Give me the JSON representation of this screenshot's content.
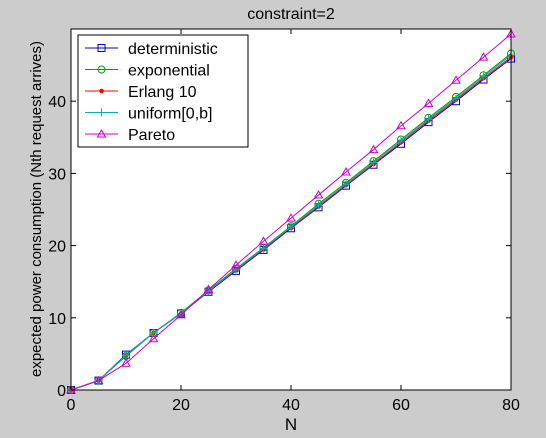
{
  "chart_data": {
    "type": "line",
    "title": "constraint=2",
    "xlabel": "N",
    "ylabel": "expected power consumption (Nth request arrives)",
    "xlim": [
      0,
      80
    ],
    "ylim": [
      0,
      50
    ],
    "xticks": [
      0,
      20,
      40,
      60,
      80
    ],
    "yticks": [
      0,
      10,
      20,
      30,
      40
    ],
    "grid": false,
    "legend_position": "top-left",
    "x": [
      0,
      5,
      10,
      15,
      20,
      25,
      30,
      35,
      40,
      45,
      50,
      55,
      60,
      65,
      70,
      75,
      80
    ],
    "series": [
      {
        "name": "deterministic",
        "color": "#0000cc",
        "marker": "square",
        "values": [
          0.0,
          1.3,
          4.9,
          7.9,
          10.6,
          13.6,
          16.5,
          19.4,
          22.4,
          25.3,
          28.3,
          31.2,
          34.1,
          37.1,
          40.0,
          43.0,
          45.9
        ]
      },
      {
        "name": "exponential",
        "color": "#00a000",
        "marker": "circle",
        "values": [
          0.0,
          1.3,
          4.7,
          7.9,
          10.7,
          13.8,
          16.8,
          19.7,
          22.7,
          25.8,
          28.7,
          31.7,
          34.7,
          37.7,
          40.6,
          43.6,
          46.6
        ]
      },
      {
        "name": "Erlang 10",
        "color": "#ff0000",
        "marker": "dot",
        "values": [
          0.0,
          1.3,
          4.8,
          7.9,
          10.6,
          13.7,
          16.6,
          19.5,
          22.5,
          25.4,
          28.4,
          31.3,
          34.3,
          37.3,
          40.2,
          43.2,
          46.1
        ]
      },
      {
        "name": "uniform[0,b]",
        "color": "#00b0b0",
        "marker": "plus",
        "values": [
          0.0,
          1.3,
          4.8,
          7.9,
          10.6,
          13.7,
          16.7,
          19.6,
          22.6,
          25.6,
          28.5,
          31.5,
          34.5,
          37.5,
          40.4,
          43.4,
          46.4
        ]
      },
      {
        "name": "Pareto",
        "color": "#cc00cc",
        "marker": "triangle",
        "values": [
          0.0,
          1.3,
          3.7,
          7.1,
          10.4,
          13.9,
          17.3,
          20.6,
          23.8,
          27.0,
          30.2,
          33.3,
          36.6,
          39.7,
          42.9,
          46.1,
          49.3
        ]
      }
    ]
  }
}
